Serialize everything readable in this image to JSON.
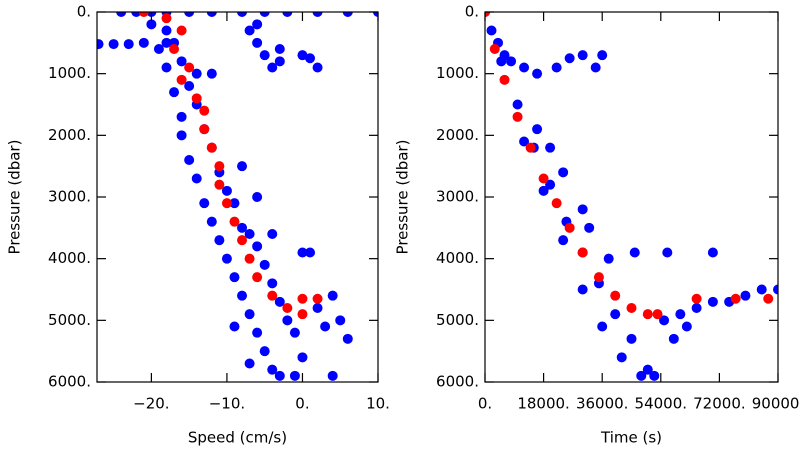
{
  "chart_data": [
    {
      "type": "scatter",
      "x_label": "Speed (cm/s)",
      "y_label": "Pressure (dbar)",
      "xlim": [
        -27.2,
        10
      ],
      "ylim": [
        0,
        6000
      ],
      "y_inverted": true,
      "xticks": [
        {
          "value": -20,
          "label": "−20."
        },
        {
          "value": -10,
          "label": "−10."
        },
        {
          "value": 0,
          "label": "0."
        },
        {
          "value": 10,
          "label": "10."
        }
      ],
      "yticks": [
        {
          "value": 0,
          "label": "0."
        },
        {
          "value": 1000,
          "label": "1000."
        },
        {
          "value": 2000,
          "label": "2000."
        },
        {
          "value": 3000,
          "label": "3000."
        },
        {
          "value": 4000,
          "label": "4000."
        },
        {
          "value": 5000,
          "label": "5000."
        },
        {
          "value": 6000,
          "label": "6000."
        }
      ],
      "series": [
        {
          "color": "#0000ff",
          "x": [
            -24,
            -22,
            -20,
            -18,
            -15,
            -12,
            -8,
            -5,
            -2,
            2,
            6,
            10,
            -27,
            -25,
            -23,
            -21,
            -18,
            -7,
            -6,
            -5,
            -4,
            -6,
            -3,
            0,
            1,
            2,
            -3,
            -20,
            -18,
            -17,
            -19,
            -16,
            -18,
            -15,
            -17,
            -14,
            -16,
            -13,
            -16,
            -12,
            -15,
            -11,
            -14,
            -10,
            -13,
            -9,
            -12,
            -8,
            -11,
            -7,
            -10,
            -6,
            -9,
            -5,
            -8,
            -4,
            -7,
            -3,
            -6,
            -2,
            -5,
            -1,
            -4,
            -7,
            -3,
            0,
            -1,
            -9,
            2,
            4,
            5,
            6,
            3,
            4,
            1,
            0,
            -8,
            -6,
            -4,
            -14,
            -12
          ],
          "values": [
            0,
            0,
            0,
            0,
            0,
            0,
            0,
            0,
            0,
            0,
            0,
            0,
            520,
            520,
            520,
            500,
            500,
            300,
            500,
            700,
            900,
            200,
            800,
            700,
            750,
            900,
            600,
            200,
            300,
            500,
            600,
            800,
            900,
            1200,
            1300,
            1500,
            1700,
            1900,
            2000,
            2200,
            2400,
            2600,
            2700,
            2900,
            3100,
            3100,
            3400,
            3500,
            3700,
            3600,
            4000,
            3800,
            4300,
            4100,
            4600,
            4400,
            4900,
            4700,
            5200,
            5000,
            5500,
            5200,
            5800,
            5700,
            5900,
            5600,
            5900,
            5100,
            4800,
            4600,
            5000,
            5300,
            5100,
            5900,
            3900,
            3900,
            2500,
            3000,
            3600,
            1000,
            1000
          ]
        },
        {
          "color": "#ff0000",
          "x": [
            -21,
            -18,
            -16,
            -17,
            -15,
            -16,
            -14,
            -13,
            -13,
            -12,
            -11,
            -11,
            -10,
            -9,
            -8,
            -7,
            -6,
            -4,
            -2,
            0,
            0,
            2
          ],
          "values": [
            0,
            100,
            300,
            600,
            900,
            1100,
            1400,
            1600,
            1900,
            2200,
            2500,
            2800,
            3100,
            3400,
            3700,
            4000,
            4300,
            4600,
            4800,
            4900,
            4650,
            4650
          ]
        }
      ]
    },
    {
      "type": "scatter",
      "x_label": "Time (s)",
      "y_label": "Pressure (dbar)",
      "xlim": [
        0,
        90000
      ],
      "ylim": [
        0,
        6000
      ],
      "y_inverted": true,
      "xticks": [
        {
          "value": 0,
          "label": "0."
        },
        {
          "value": 18000,
          "label": "18000."
        },
        {
          "value": 36000,
          "label": "36000."
        },
        {
          "value": 54000,
          "label": "54000."
        },
        {
          "value": 72000,
          "label": "72000."
        },
        {
          "value": 90000,
          "label": "90000."
        }
      ],
      "yticks": [
        {
          "value": 0,
          "label": "0."
        },
        {
          "value": 1000,
          "label": "1000."
        },
        {
          "value": 2000,
          "label": "2000."
        },
        {
          "value": 3000,
          "label": "3000."
        },
        {
          "value": 4000,
          "label": "4000."
        },
        {
          "value": 5000,
          "label": "5000."
        },
        {
          "value": 6000,
          "label": "6000."
        }
      ],
      "series": [
        {
          "color": "#0000ff",
          "x": [
            0,
            2000,
            4000,
            6000,
            8000,
            12000,
            16000,
            22000,
            26000,
            30000,
            34000,
            36000,
            5000,
            10000,
            15000,
            20000,
            25000,
            30000,
            35000,
            40000,
            45000,
            50000,
            52000,
            12000,
            18000,
            24000,
            30000,
            36000,
            42000,
            48000,
            16000,
            20000,
            24000,
            30000,
            32000,
            38000,
            55000,
            58000,
            60000,
            62000,
            65000,
            70000,
            75000,
            80000,
            85000,
            90000,
            46000,
            56000,
            70000
          ],
          "values": [
            0,
            300,
            500,
            700,
            800,
            900,
            1000,
            900,
            750,
            700,
            900,
            700,
            800,
            1500,
            2200,
            2800,
            3400,
            3900,
            4400,
            4900,
            5300,
            5800,
            5900,
            2100,
            2900,
            3700,
            4500,
            5100,
            5600,
            5900,
            1900,
            2200,
            2600,
            3200,
            3500,
            4000,
            5000,
            5300,
            4900,
            5100,
            4800,
            4700,
            4700,
            4600,
            4500,
            4500,
            3900,
            3900,
            3900
          ]
        },
        {
          "color": "#ff0000",
          "x": [
            0,
            3000,
            6000,
            10000,
            14000,
            18000,
            22000,
            26000,
            30000,
            35000,
            40000,
            45000,
            50000,
            53000,
            65000,
            77000,
            87000
          ],
          "values": [
            0,
            600,
            1100,
            1700,
            2200,
            2700,
            3100,
            3500,
            3900,
            4300,
            4600,
            4800,
            4900,
            4900,
            4650,
            4650,
            4650
          ]
        }
      ]
    }
  ]
}
